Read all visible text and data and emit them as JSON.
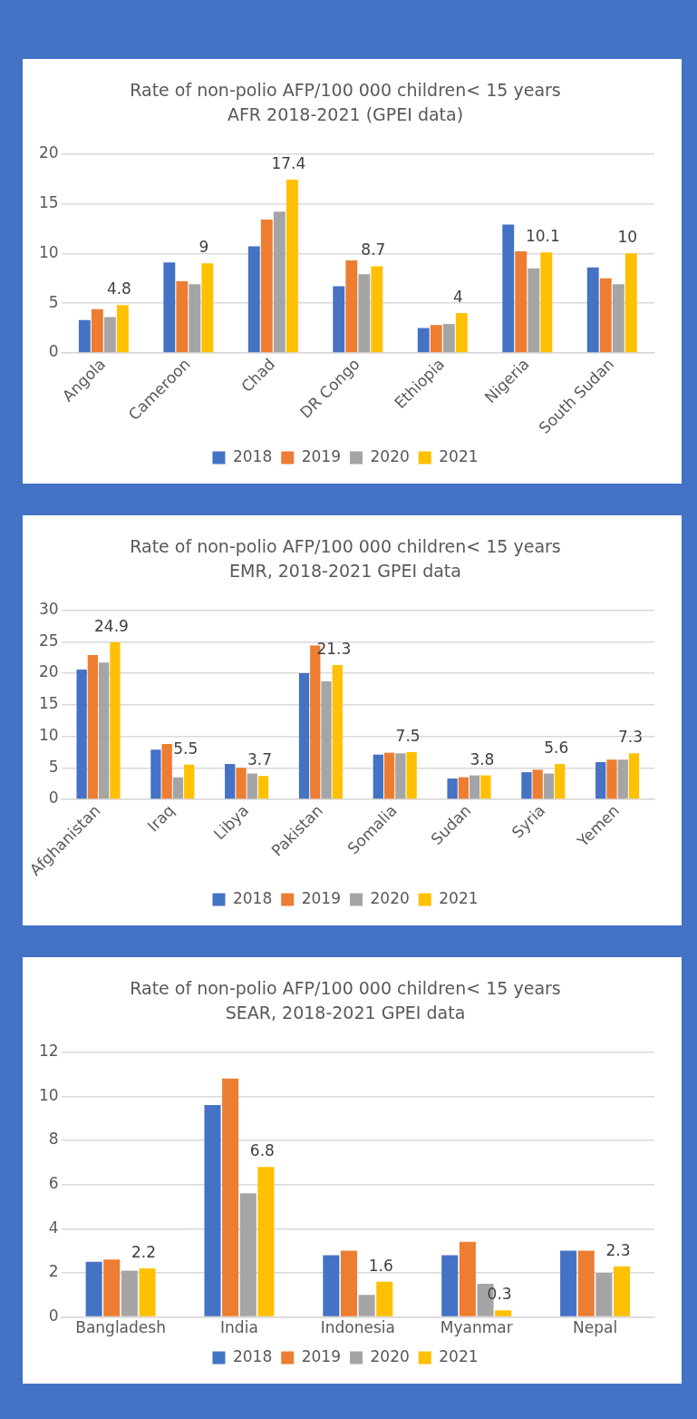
{
  "chart_data": [
    {
      "type": "bar",
      "title": "Rate of non-polio AFP/100 000 children< 15 years",
      "subtitle": "AFR 2018-2021 (GPEI data)",
      "categories": [
        "Angola",
        "Cameroon",
        "Chad",
        "DR Congo",
        "Ethiopia",
        "Nigeria",
        "South Sudan"
      ],
      "series": [
        {
          "name": "2018",
          "color": "#4472c4",
          "values": [
            3.3,
            9.1,
            10.7,
            6.7,
            2.5,
            12.9,
            8.6
          ]
        },
        {
          "name": "2019",
          "color": "#ed7d31",
          "values": [
            4.4,
            7.2,
            13.4,
            9.3,
            2.8,
            10.2,
            7.5
          ]
        },
        {
          "name": "2020",
          "color": "#a5a5a5",
          "values": [
            3.6,
            6.9,
            14.2,
            7.9,
            2.9,
            8.5,
            6.9
          ]
        },
        {
          "name": "2021",
          "color": "#ffc000",
          "values": [
            4.8,
            9,
            17.4,
            8.7,
            4,
            10.1,
            10
          ],
          "value_labels": [
            "4.8",
            "9",
            "17.4",
            "8.7",
            "4",
            "10.1",
            "10"
          ]
        }
      ],
      "ylim": [
        0,
        20
      ],
      "yticks": [
        0,
        5,
        10,
        15,
        20
      ],
      "grid": "y",
      "legend": "bottom"
    },
    {
      "type": "bar",
      "title": "Rate of non-polio AFP/100 000 children< 15 years",
      "subtitle": "EMR, 2018-2021 GPEI data",
      "categories": [
        "Afghanistan",
        "Iraq",
        "Libya",
        "Pakistan",
        "Somalia",
        "Sudan",
        "Syria",
        "Yemen"
      ],
      "series": [
        {
          "name": "2018",
          "color": "#4472c4",
          "values": [
            20.6,
            7.9,
            5.6,
            20.0,
            7.1,
            3.3,
            4.3,
            5.9
          ]
        },
        {
          "name": "2019",
          "color": "#ed7d31",
          "values": [
            22.9,
            8.8,
            5.0,
            24.4,
            7.4,
            3.5,
            4.7,
            6.3
          ]
        },
        {
          "name": "2020",
          "color": "#a5a5a5",
          "values": [
            21.7,
            3.5,
            4.1,
            18.7,
            7.3,
            3.8,
            4.1,
            6.3
          ]
        },
        {
          "name": "2021",
          "color": "#ffc000",
          "values": [
            24.9,
            5.5,
            3.7,
            21.3,
            7.5,
            3.8,
            5.6,
            7.3
          ],
          "value_labels": [
            "24.9",
            "5.5",
            "3.7",
            "21.3",
            "7.5",
            "3.8",
            "5.6",
            "7.3"
          ]
        }
      ],
      "ylim": [
        0,
        30
      ],
      "yticks": [
        0,
        5,
        10,
        15,
        20,
        25,
        30
      ],
      "grid": "y",
      "legend": "bottom"
    },
    {
      "type": "bar",
      "title": "Rate of non-polio AFP/100 000 children< 15 years",
      "subtitle": "SEAR, 2018-2021 GPEI data",
      "categories": [
        "Bangladesh",
        "India",
        "Indonesia",
        "Myanmar",
        "Nepal"
      ],
      "series": [
        {
          "name": "2018",
          "color": "#4472c4",
          "values": [
            2.5,
            9.6,
            2.8,
            2.8,
            3.0
          ]
        },
        {
          "name": "2019",
          "color": "#ed7d31",
          "values": [
            2.6,
            10.8,
            3.0,
            3.4,
            3.0
          ]
        },
        {
          "name": "2020",
          "color": "#a5a5a5",
          "values": [
            2.1,
            5.6,
            1.0,
            1.5,
            2.0
          ]
        },
        {
          "name": "2021",
          "color": "#ffc000",
          "values": [
            2.2,
            6.8,
            1.6,
            0.3,
            2.3
          ],
          "value_labels": [
            "2.2",
            "6.8",
            "1.6",
            "0.3",
            "2.3"
          ]
        }
      ],
      "ylim": [
        0,
        12
      ],
      "yticks": [
        0,
        2,
        4,
        6,
        8,
        10,
        12
      ],
      "grid": "y",
      "legend": "bottom"
    }
  ]
}
